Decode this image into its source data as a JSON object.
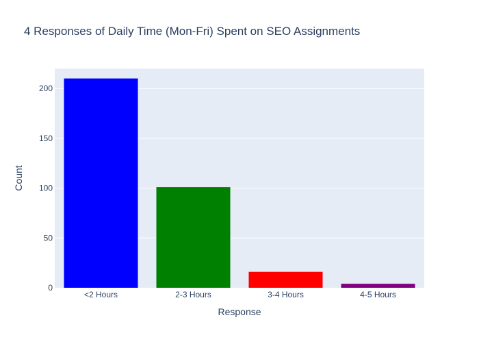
{
  "chart_data": {
    "type": "bar",
    "title": "4 Responses of Daily Time (Mon-Fri) Spent on SEO Assignments",
    "xlabel": "Response",
    "ylabel": "Count",
    "categories": [
      "<2 Hours",
      "2-3 Hours",
      "3-4 Hours",
      "4-5 Hours"
    ],
    "values": [
      210,
      101,
      16,
      4
    ],
    "colors": [
      "#0000ff",
      "#008000",
      "#ff0000",
      "#800080"
    ],
    "ylim": [
      0,
      220
    ],
    "yticks": [
      0,
      50,
      100,
      150,
      200
    ],
    "grid": true,
    "legend": "none",
    "plot_background": "#e5ecf6"
  }
}
